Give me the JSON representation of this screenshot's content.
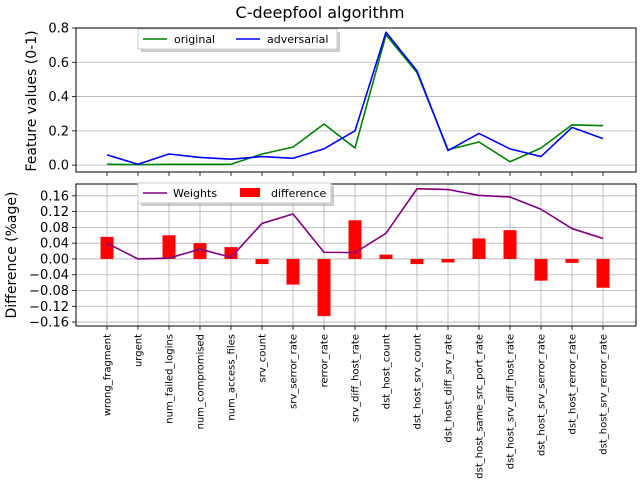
{
  "chart_data": [
    {
      "type": "line",
      "title": "C-deepfool algorithm",
      "xlabel": "",
      "ylabel": "Feature values (0-1)",
      "ylim": [
        -0.04,
        0.8
      ],
      "yticks": [
        "0.0",
        "0.2",
        "0.4",
        "0.6",
        "0.8"
      ],
      "grid": true,
      "legend_position": "top-left",
      "series": [
        {
          "name": "original",
          "color": "#008000",
          "values": [
            0.005,
            0.003,
            0.005,
            0.005,
            0.005,
            0.065,
            0.105,
            0.24,
            0.1,
            0.76,
            0.54,
            0.09,
            0.135,
            0.02,
            0.1,
            0.235,
            0.23
          ]
        },
        {
          "name": "adversarial",
          "color": "#0000ff",
          "values": [
            0.06,
            0.005,
            0.065,
            0.045,
            0.035,
            0.05,
            0.04,
            0.095,
            0.2,
            0.775,
            0.55,
            0.085,
            0.185,
            0.095,
            0.05,
            0.22,
            0.155
          ]
        }
      ]
    },
    {
      "type": "bar",
      "xlabel": "",
      "ylabel": "Difference (%age)",
      "ylim": [
        -0.17,
        0.19
      ],
      "yticks": [
        "0.16",
        "0.12",
        "0.08",
        "0.04",
        "0.00",
        "−0.04",
        "−0.08",
        "−0.12",
        "−0.16"
      ],
      "grid": true,
      "legend_position": "top-left",
      "categories": [
        "wrong_fragment",
        "urgent",
        "num_failed_logins",
        "num_compromised",
        "num_access_files",
        "srv_count",
        "srv_serror_rate",
        "rerror_rate",
        "srv_diff_host_rate",
        "dst_host_count",
        "dst_host_srv_count",
        "dst_host_diff_srv_rate",
        "dst_host_same_src_port_rate",
        "dst_host_srv_diff_host_rate",
        "dst_host_srv_serror_rate",
        "dst_host_rerror_rate",
        "dst_host_srv_rerror_rate"
      ],
      "series": [
        {
          "name": "Weights",
          "kind": "line",
          "color": "#800080",
          "values": [
            0.04,
            0.0,
            0.002,
            0.025,
            0.004,
            0.09,
            0.114,
            0.017,
            0.016,
            0.065,
            0.178,
            0.176,
            0.161,
            0.157,
            0.126,
            0.077,
            0.052
          ]
        },
        {
          "name": "difference",
          "kind": "bar",
          "color": "#ff0000",
          "values": [
            0.056,
            0.0,
            0.06,
            0.04,
            0.03,
            -0.013,
            -0.065,
            -0.145,
            0.098,
            0.011,
            -0.013,
            -0.009,
            0.052,
            0.073,
            -0.055,
            -0.01,
            -0.073
          ]
        }
      ]
    }
  ]
}
